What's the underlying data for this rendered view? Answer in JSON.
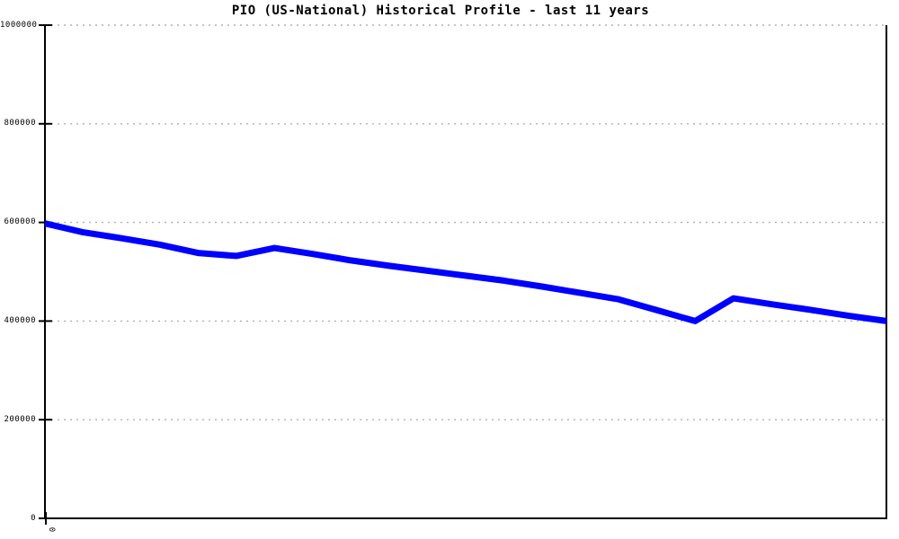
{
  "chart_data": {
    "type": "line",
    "title": "PIO (US-National) Historical Profile - last 11 years",
    "xlabel": "",
    "ylabel": "",
    "ylim": [
      0,
      1000000
    ],
    "y_ticks": [
      0,
      200000,
      400000,
      600000,
      800000,
      1000000
    ],
    "y_tick_labels": [
      "0",
      "200000",
      "400000",
      "600000",
      "800000",
      "1000000"
    ],
    "x_tick_labels": [
      "0"
    ],
    "grid": "horizontal dotted lines at each y tick",
    "legend": "none",
    "series": [
      {
        "name": "PIO",
        "color": "#0000ff",
        "x": [
          0,
          1,
          2,
          3,
          4,
          5,
          6,
          7,
          8,
          9,
          10,
          11,
          12,
          13,
          14,
          15,
          16,
          17,
          18,
          19,
          20,
          21,
          22
        ],
        "values": [
          598000,
          580000,
          568000,
          555000,
          538000,
          532000,
          548000,
          536000,
          523000,
          512000,
          502000,
          492000,
          482000,
          470000,
          457000,
          444000,
          422000,
          400000,
          446000,
          434000,
          423000,
          411000,
          400000
        ]
      }
    ],
    "colors": {
      "line": "#0000ff",
      "grid": "#b0b0b0",
      "axis": "#000000",
      "background": "#ffffff",
      "text": "#000000"
    }
  }
}
